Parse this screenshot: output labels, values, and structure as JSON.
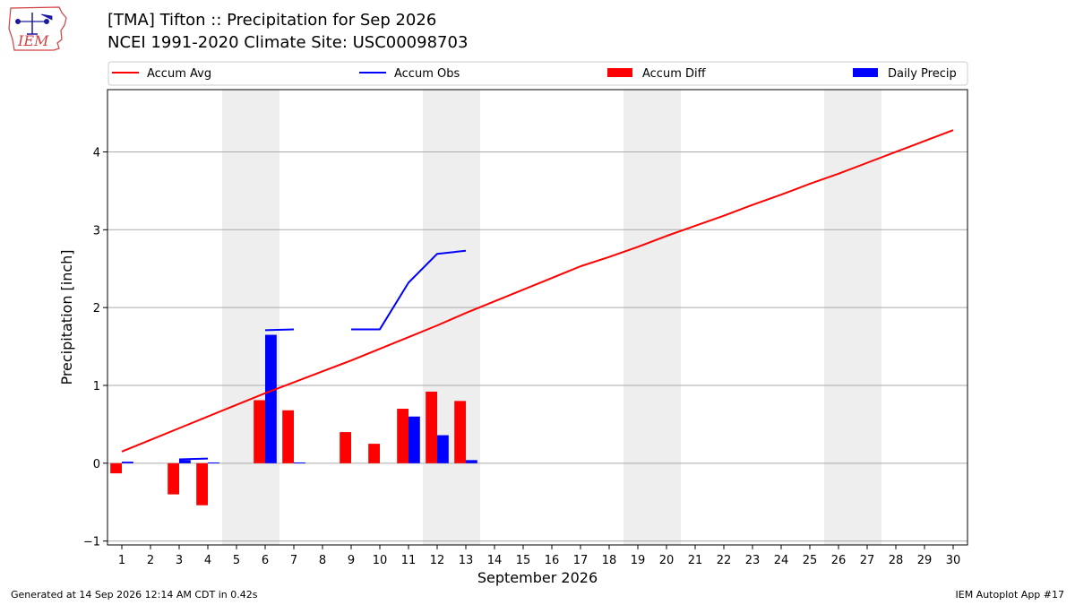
{
  "header": {
    "title_line1": "[TMA] Tifton :: Precipitation for Sep 2026",
    "title_line2": "NCEI 1991-2020 Climate Site: USC00098703",
    "logo_text": "IEM"
  },
  "footer": {
    "left": "Generated at 14 Sep 2026 12:14 AM CDT in 0.42s",
    "right": "IEM Autoplot App #17"
  },
  "colors": {
    "accum_avg": "#ff0000",
    "accum_obs": "#0000ff",
    "accum_diff": "#ff0000",
    "daily_precip": "#0000ff",
    "weekend_shade": "#eeeeee",
    "grid": "#aaaaaa"
  },
  "chart_data": {
    "type": "bar",
    "xlabel": "September 2026",
    "ylabel": "Precipitation [inch]",
    "xlim": [
      0.5,
      30.5
    ],
    "ylim": [
      -1.05,
      4.8
    ],
    "yticks": [
      -1,
      0,
      1,
      2,
      3,
      4
    ],
    "days": [
      1,
      2,
      3,
      4,
      5,
      6,
      7,
      8,
      9,
      10,
      11,
      12,
      13,
      14,
      15,
      16,
      17,
      18,
      19,
      20,
      21,
      22,
      23,
      24,
      25,
      26,
      27,
      28,
      29,
      30
    ],
    "grid": "horizontal",
    "legend_position": "top",
    "weekend_shaded_days": [
      [
        5,
        6
      ],
      [
        12,
        13
      ],
      [
        19,
        20
      ],
      [
        26,
        27
      ]
    ],
    "legend": [
      {
        "label": "Accum Avg",
        "kind": "line",
        "color": "#ff0000"
      },
      {
        "label": "Accum Obs",
        "kind": "line",
        "color": "#0000ff"
      },
      {
        "label": "Accum Diff",
        "kind": "bar",
        "color": "#ff0000"
      },
      {
        "label": "Daily Precip",
        "kind": "bar",
        "color": "#0000ff"
      }
    ],
    "series": [
      {
        "name": "Accum Avg",
        "kind": "line",
        "x": [
          1,
          2,
          3,
          4,
          5,
          6,
          7,
          8,
          9,
          10,
          11,
          12,
          13,
          14,
          15,
          16,
          17,
          18,
          19,
          20,
          21,
          22,
          23,
          24,
          25,
          26,
          27,
          28,
          29,
          30
        ],
        "values": [
          0.15,
          0.3,
          0.45,
          0.6,
          0.75,
          0.9,
          1.04,
          1.18,
          1.32,
          1.47,
          1.62,
          1.77,
          1.93,
          2.08,
          2.23,
          2.38,
          2.53,
          2.65,
          2.78,
          2.92,
          3.05,
          3.18,
          3.32,
          3.45,
          3.59,
          3.72,
          3.86,
          4.0,
          4.14,
          4.28
        ]
      },
      {
        "name": "Accum Obs",
        "kind": "line",
        "x": [
          1,
          2,
          3,
          4,
          5,
          6,
          7,
          8,
          9,
          10,
          11,
          12,
          13
        ],
        "values": [
          null,
          null,
          0.05,
          0.06,
          null,
          1.71,
          1.72,
          null,
          1.72,
          1.72,
          2.32,
          2.69,
          2.73
        ]
      },
      {
        "name": "Accum Diff",
        "kind": "bar",
        "x": [
          1,
          2,
          3,
          4,
          5,
          6,
          7,
          8,
          9,
          10,
          11,
          12,
          13
        ],
        "values": [
          -0.13,
          0.0,
          -0.4,
          -0.54,
          0.0,
          0.81,
          0.68,
          0.0,
          0.4,
          0.25,
          0.7,
          0.92,
          0.8
        ]
      },
      {
        "name": "Daily Precip",
        "kind": "bar",
        "x": [
          1,
          2,
          3,
          4,
          5,
          6,
          7,
          8,
          9,
          10,
          11,
          12,
          13
        ],
        "values": [
          0.02,
          0.0,
          0.04,
          0.01,
          0.0,
          1.65,
          0.01,
          0.0,
          0.0,
          0.0,
          0.6,
          0.36,
          0.04
        ]
      }
    ]
  }
}
